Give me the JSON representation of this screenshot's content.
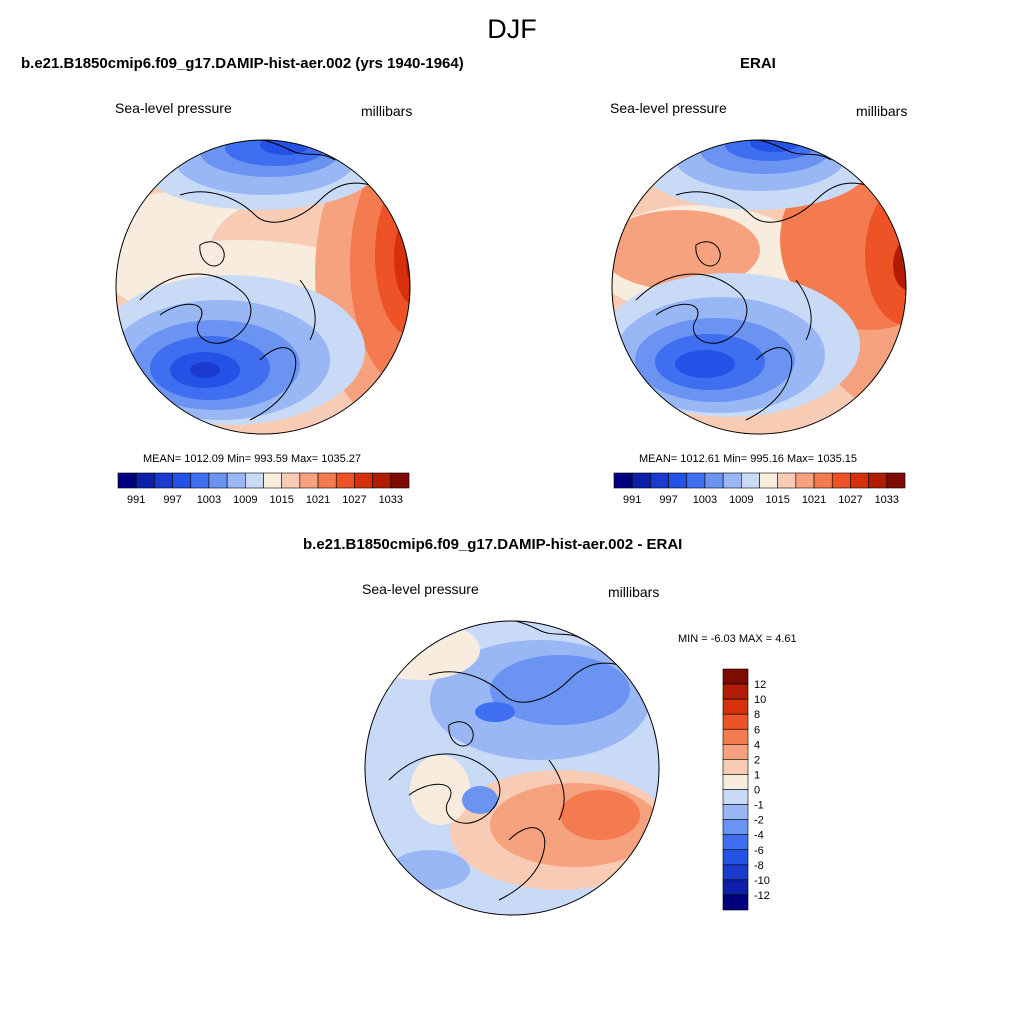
{
  "figure": {
    "season": "DJF"
  },
  "chart_data": [
    {
      "type": "heatmap",
      "title": "b.e21.B1850cmip6.f09_g17.DAMIP-hist-aer.002 (yrs 1940-1964)",
      "left_label": "Sea-level pressure",
      "right_label": "millibars",
      "stats_text": "MEAN= 1012.09  Min= 993.59  Max= 1035.27",
      "mean": 1012.09,
      "min": 993.59,
      "max": 1035.27,
      "colorbar": {
        "orientation": "horizontal",
        "levels": [
          991,
          994,
          997,
          1000,
          1003,
          1006,
          1009,
          1012,
          1015,
          1018,
          1021,
          1024,
          1027,
          1030,
          1033
        ],
        "tick_labels": [
          "991",
          "997",
          "1003",
          "1009",
          "1015",
          "1021",
          "1027",
          "1033"
        ]
      }
    },
    {
      "type": "heatmap",
      "title": "ERAI",
      "left_label": "Sea-level pressure",
      "right_label": "millibars",
      "stats_text": "MEAN= 1012.61  Min= 995.16  Max= 1035.15",
      "mean": 1012.61,
      "min": 995.16,
      "max": 1035.15,
      "colorbar": {
        "orientation": "horizontal",
        "levels": [
          991,
          994,
          997,
          1000,
          1003,
          1006,
          1009,
          1012,
          1015,
          1018,
          1021,
          1024,
          1027,
          1030,
          1033
        ],
        "tick_labels": [
          "991",
          "997",
          "1003",
          "1009",
          "1015",
          "1021",
          "1027",
          "1033"
        ]
      }
    },
    {
      "type": "heatmap",
      "title": "b.e21.B1850cmip6.f09_g17.DAMIP-hist-aer.002 - ERAI",
      "left_label": "Sea-level pressure",
      "right_label": "millibars",
      "stats_text": "MIN =  -6.03 MAX =   4.61",
      "min": -6.03,
      "max": 4.61,
      "colorbar": {
        "orientation": "vertical",
        "levels": [
          12,
          10,
          8,
          6,
          4,
          2,
          1,
          0,
          -1,
          -2,
          -4,
          -6,
          -8,
          -10,
          -12
        ],
        "tick_labels": [
          "12",
          "10",
          "8",
          "6",
          "4",
          "2",
          "1",
          "0",
          "-1",
          "-2",
          "-4",
          "-6",
          "-8",
          "-10",
          "-12"
        ]
      }
    }
  ],
  "colors": {
    "scale": [
      "#00007f",
      "#0d20a8",
      "#1a3ad0",
      "#2452e6",
      "#3f6ef0",
      "#6a93f2",
      "#98b7f4",
      "#c8daf6",
      "#f8ecde",
      "#f8cbb4",
      "#f6a27f",
      "#f47a4f",
      "#ee5327",
      "#d7300c",
      "#b21c05",
      "#7f0a00"
    ]
  }
}
